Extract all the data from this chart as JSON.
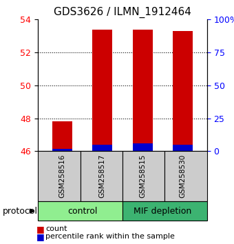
{
  "title": "GDS3626 / ILMN_1912464",
  "samples": [
    "GSM258516",
    "GSM258517",
    "GSM258515",
    "GSM258530"
  ],
  "groups": [
    {
      "name": "control",
      "color": "#90EE90",
      "indices": [
        0,
        1
      ]
    },
    {
      "name": "MIF depletion",
      "color": "#3CB371",
      "indices": [
        2,
        3
      ]
    }
  ],
  "count_values": [
    47.8,
    53.4,
    53.4,
    53.3
  ],
  "percentile_values": [
    2.0,
    5.0,
    6.0,
    5.0
  ],
  "ylim_left": [
    46,
    54
  ],
  "ylim_right": [
    0,
    100
  ],
  "yticks_left": [
    46,
    48,
    50,
    52,
    54
  ],
  "yticks_right": [
    0,
    25,
    50,
    75,
    100
  ],
  "ytick_labels_right": [
    "0",
    "25",
    "50",
    "75",
    "100%"
  ],
  "grid_ticks": [
    48,
    50,
    52
  ],
  "bar_color_red": "#CC0000",
  "bar_color_blue": "#0000CC",
  "title_fontsize": 11,
  "tick_fontsize": 9,
  "bar_width": 0.5,
  "x_positions": [
    0,
    1,
    2,
    3
  ],
  "protocol_label": "protocol",
  "legend_count": "count",
  "legend_percentile": "percentile rank within the sample",
  "background_sample_box": "#cccccc",
  "sample_fontsize": 7.5,
  "group_fontsize": 9,
  "legend_fontsize": 8
}
